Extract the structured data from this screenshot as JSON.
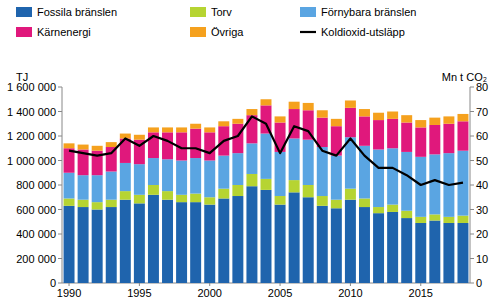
{
  "chart_data": {
    "type": "bar",
    "stacked": true,
    "grid": false,
    "legend": "top",
    "y_label": "TJ",
    "y2_label": "Mn t CO₂",
    "categories": [
      "1990",
      null,
      null,
      null,
      null,
      "1995",
      null,
      null,
      null,
      null,
      "2000",
      null,
      null,
      null,
      null,
      "2005",
      null,
      null,
      null,
      null,
      "2010",
      null,
      null,
      null,
      null,
      "2015",
      null,
      null,
      null
    ],
    "ylim": [
      0,
      1600000
    ],
    "yticks": [
      0,
      {
        "value": 200000,
        "label": "200 000"
      },
      {
        "value": 400000,
        "label": "400 000"
      },
      {
        "value": 600000,
        "label": "600 000"
      },
      {
        "value": 800000,
        "label": "800 000"
      },
      {
        "value": 1000000,
        "label": "1 000 000"
      },
      {
        "value": 1200000,
        "label": "1 200 000"
      },
      {
        "value": 1400000,
        "label": "1 400 000"
      },
      {
        "value": 1600000,
        "label": "1 600 000"
      }
    ],
    "y2lim": [
      0,
      80
    ],
    "y2ticks": [
      0,
      10,
      20,
      30,
      40,
      50,
      60,
      70,
      80
    ],
    "series": [
      {
        "name": "Fossila bränslen",
        "color": "#1f64ad",
        "values": [
          630000,
          620000,
          600000,
          620000,
          680000,
          650000,
          720000,
          680000,
          660000,
          660000,
          640000,
          690000,
          710000,
          790000,
          760000,
          640000,
          740000,
          700000,
          630000,
          610000,
          680000,
          620000,
          570000,
          580000,
          530000,
          490000,
          510000,
          490000,
          490000
        ]
      },
      {
        "name": "Torv",
        "color": "#b6d432",
        "values": [
          60000,
          60000,
          60000,
          60000,
          70000,
          70000,
          80000,
          70000,
          60000,
          70000,
          60000,
          80000,
          90000,
          100000,
          90000,
          70000,
          100000,
          100000,
          80000,
          70000,
          90000,
          70000,
          50000,
          60000,
          60000,
          50000,
          50000,
          50000,
          60000
        ]
      },
      {
        "name": "Förnybara bränslen",
        "color": "#5aa5e2",
        "values": [
          210000,
          200000,
          220000,
          230000,
          230000,
          250000,
          220000,
          260000,
          280000,
          290000,
          300000,
          270000,
          260000,
          250000,
          370000,
          360000,
          340000,
          370000,
          400000,
          360000,
          420000,
          430000,
          470000,
          460000,
          480000,
          490000,
          490000,
          520000,
          530000
        ]
      },
      {
        "name": "Kärnenergi",
        "color": "#e0187c",
        "values": [
          200000,
          210000,
          200000,
          200000,
          200000,
          200000,
          210000,
          220000,
          230000,
          240000,
          230000,
          240000,
          240000,
          230000,
          230000,
          240000,
          240000,
          240000,
          240000,
          240000,
          240000,
          240000,
          240000,
          240000,
          240000,
          240000,
          240000,
          240000,
          240000
        ]
      },
      {
        "name": "Övriga",
        "color": "#f5a11e",
        "values": [
          40000,
          40000,
          40000,
          40000,
          40000,
          40000,
          40000,
          40000,
          40000,
          40000,
          40000,
          40000,
          40000,
          50000,
          50000,
          50000,
          60000,
          60000,
          60000,
          60000,
          60000,
          60000,
          60000,
          60000,
          60000,
          60000,
          60000,
          60000,
          60000
        ]
      },
      {
        "name": "Koldioxid-utsläpp",
        "color": "#000000",
        "type": "line",
        "axis": "y2",
        "values": [
          54,
          53,
          52,
          53,
          59,
          56,
          60,
          58,
          55,
          55,
          53,
          58,
          60,
          68,
          65,
          53,
          64,
          62,
          54,
          52,
          59,
          52,
          47,
          47,
          44,
          40,
          42,
          40,
          41
        ]
      }
    ]
  }
}
